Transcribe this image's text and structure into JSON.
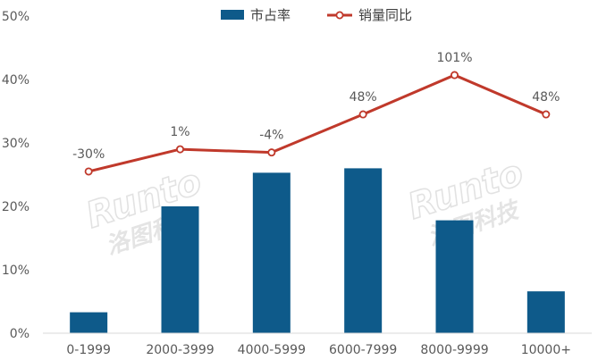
{
  "chart_data": {
    "type": "bar",
    "categories": [
      "0-1999",
      "2000-3999",
      "4000-5999",
      "6000-7999",
      "8000-9999",
      "10000+"
    ],
    "series": [
      {
        "name": "市占率",
        "type": "bar",
        "values": [
          3.3,
          20.0,
          25.3,
          26.0,
          17.8,
          6.6
        ],
        "color": "#0E5A8A"
      },
      {
        "name": "销量同比",
        "type": "line",
        "values": [
          25.5,
          29.0,
          28.5,
          34.5,
          40.7,
          34.5
        ],
        "data_labels": [
          "-30%",
          "1%",
          "-4%",
          "48%",
          "101%",
          "48%"
        ],
        "color": "#C0392B"
      }
    ],
    "ylim": [
      0,
      50
    ],
    "yticks": [
      "0%",
      "10%",
      "20%",
      "30%",
      "40%",
      "50%"
    ],
    "grid": false,
    "legend_position": "top-center"
  },
  "watermark": {
    "brand": "Runto",
    "name_cn": "洛图科技"
  }
}
